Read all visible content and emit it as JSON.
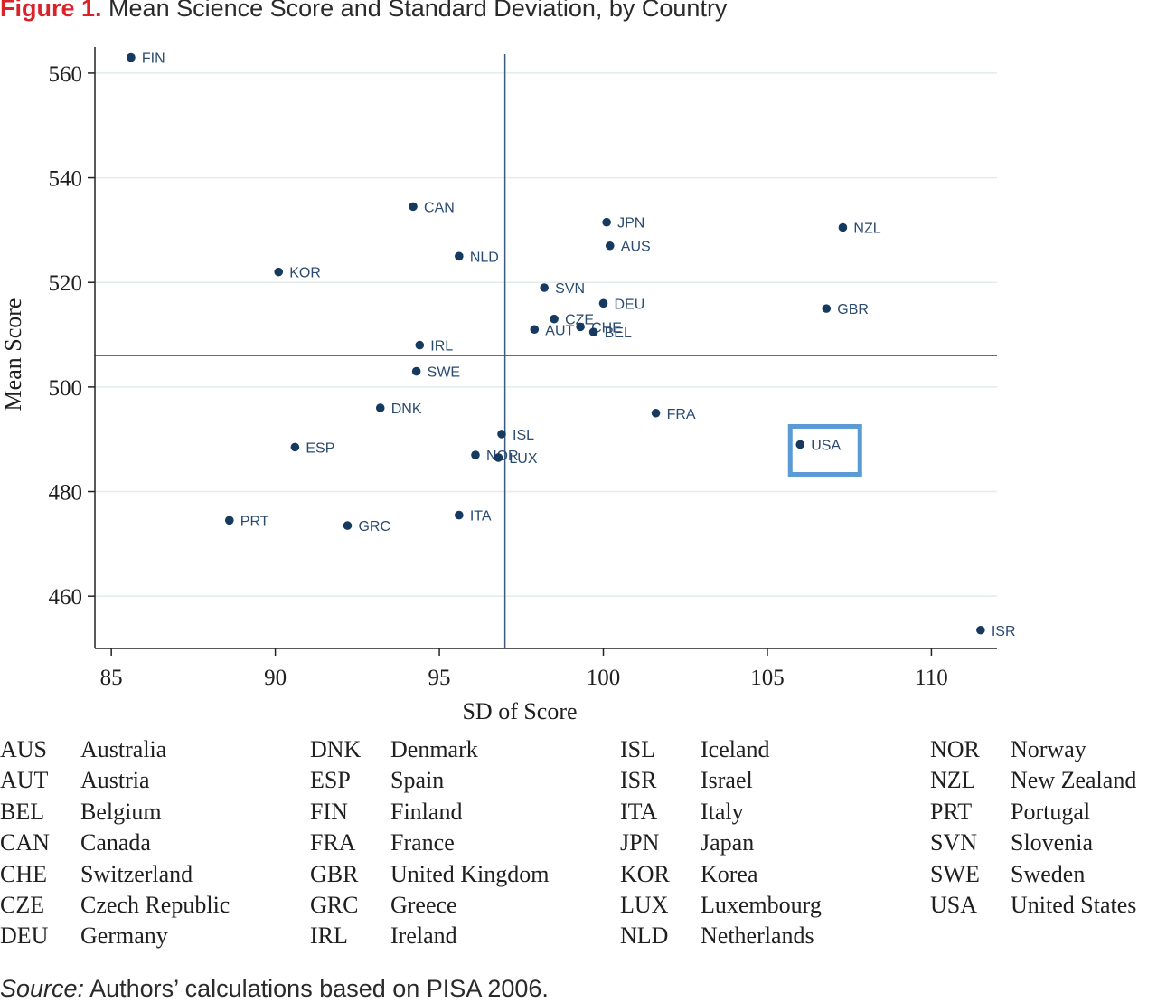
{
  "figure": {
    "label": "Figure 1.",
    "title": "Mean Science Score and Standard Deviation, by Country"
  },
  "chart_data": {
    "type": "scatter",
    "xlabel": "SD of Score",
    "ylabel": "Mean Score",
    "xlim": [
      84.5,
      112
    ],
    "ylim": [
      450,
      565
    ],
    "xticks": [
      85,
      90,
      95,
      100,
      105,
      110
    ],
    "yticks": [
      460,
      480,
      500,
      520,
      540,
      560
    ],
    "grid": "horizontal",
    "reference_lines": {
      "x": 97,
      "y": 506
    },
    "highlight": "USA",
    "point_color": "#163a5f",
    "highlight_color": "#5b9bd5",
    "points": [
      {
        "label": "FIN",
        "x": 85.6,
        "y": 563
      },
      {
        "label": "CAN",
        "x": 94.2,
        "y": 534.5
      },
      {
        "label": "JPN",
        "x": 100.1,
        "y": 531.5
      },
      {
        "label": "NZL",
        "x": 107.3,
        "y": 530.5
      },
      {
        "label": "AUS",
        "x": 100.2,
        "y": 527
      },
      {
        "label": "NLD",
        "x": 95.6,
        "y": 525
      },
      {
        "label": "KOR",
        "x": 90.1,
        "y": 522
      },
      {
        "label": "SVN",
        "x": 98.2,
        "y": 519
      },
      {
        "label": "DEU",
        "x": 100,
        "y": 516
      },
      {
        "label": "GBR",
        "x": 106.8,
        "y": 515
      },
      {
        "label": "CZE",
        "x": 98.5,
        "y": 513
      },
      {
        "label": "CHE",
        "x": 99.3,
        "y": 511.5
      },
      {
        "label": "AUT",
        "x": 97.9,
        "y": 511
      },
      {
        "label": "BEL",
        "x": 99.7,
        "y": 510.5
      },
      {
        "label": "IRL",
        "x": 94.4,
        "y": 508
      },
      {
        "label": "SWE",
        "x": 94.3,
        "y": 503
      },
      {
        "label": "DNK",
        "x": 93.2,
        "y": 496
      },
      {
        "label": "FRA",
        "x": 101.6,
        "y": 495
      },
      {
        "label": "ISL",
        "x": 96.9,
        "y": 491
      },
      {
        "label": "USA",
        "x": 106,
        "y": 489
      },
      {
        "label": "ESP",
        "x": 90.6,
        "y": 488.5
      },
      {
        "label": "NOR",
        "x": 96.1,
        "y": 487
      },
      {
        "label": "LUX",
        "x": 96.8,
        "y": 486.5
      },
      {
        "label": "ITA",
        "x": 95.6,
        "y": 475.5
      },
      {
        "label": "PRT",
        "x": 88.6,
        "y": 474.5
      },
      {
        "label": "GRC",
        "x": 92.2,
        "y": 473.5
      },
      {
        "label": "ISR",
        "x": 111.5,
        "y": 453.5
      }
    ]
  },
  "legend": [
    [
      {
        "code": "AUS",
        "name": "Australia"
      },
      {
        "code": "AUT",
        "name": "Austria"
      },
      {
        "code": "BEL",
        "name": "Belgium"
      },
      {
        "code": "CAN",
        "name": "Canada"
      },
      {
        "code": "CHE",
        "name": "Switzerland"
      },
      {
        "code": "CZE",
        "name": "Czech Republic"
      },
      {
        "code": "DEU",
        "name": "Germany"
      }
    ],
    [
      {
        "code": "DNK",
        "name": "Denmark"
      },
      {
        "code": "ESP",
        "name": "Spain"
      },
      {
        "code": "FIN",
        "name": "Finland"
      },
      {
        "code": "FRA",
        "name": "France"
      },
      {
        "code": "GBR",
        "name": "United Kingdom"
      },
      {
        "code": "GRC",
        "name": "Greece"
      },
      {
        "code": "IRL",
        "name": "Ireland"
      }
    ],
    [
      {
        "code": "ISL",
        "name": "Iceland"
      },
      {
        "code": "ISR",
        "name": "Israel"
      },
      {
        "code": "ITA",
        "name": "Italy"
      },
      {
        "code": "JPN",
        "name": "Japan"
      },
      {
        "code": "KOR",
        "name": "Korea"
      },
      {
        "code": "LUX",
        "name": "Luxembourg"
      },
      {
        "code": "NLD",
        "name": "Netherlands"
      }
    ],
    [
      {
        "code": "NOR",
        "name": "Norway"
      },
      {
        "code": "NZL",
        "name": "New Zealand"
      },
      {
        "code": "PRT",
        "name": "Portugal"
      },
      {
        "code": "SVN",
        "name": "Slovenia"
      },
      {
        "code": "SWE",
        "name": "Sweden"
      },
      {
        "code": "USA",
        "name": "United States"
      }
    ]
  ],
  "source": {
    "label": "Source:",
    "text": " Authors’ calculations based on PISA 2006."
  }
}
